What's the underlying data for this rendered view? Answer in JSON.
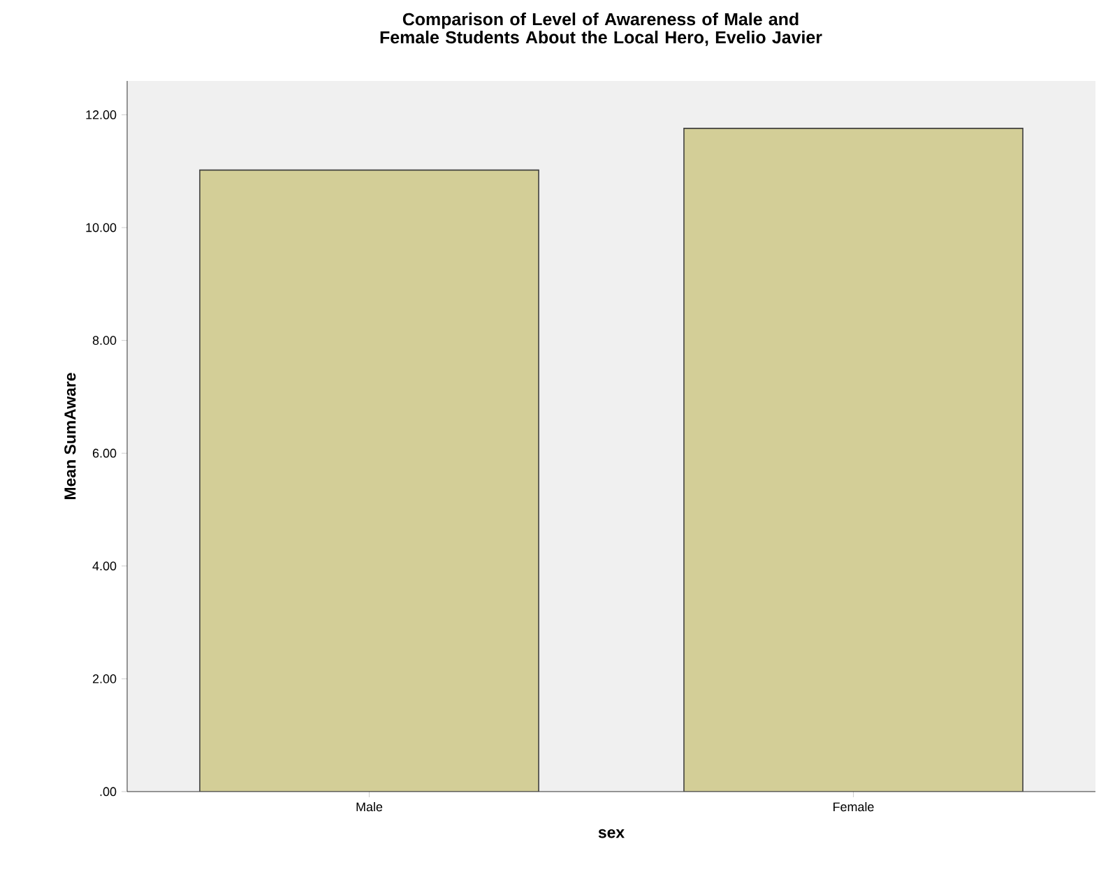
{
  "chart_data": {
    "type": "bar",
    "title": "Comparison of Level of Awareness of Male and Female Students About the Local Hero, Evelio Javier",
    "xlabel": "sex",
    "ylabel": "Mean SumAware",
    "categories": [
      "Male",
      "Female"
    ],
    "values": [
      11.02,
      11.76
    ],
    "color": "#d3ce97",
    "ylim": [
      0,
      12.6
    ],
    "yticks": [
      {
        "value": 0,
        "label": ".00"
      },
      {
        "value": 2,
        "label": "2.00"
      },
      {
        "value": 4,
        "label": "4.00"
      },
      {
        "value": 6,
        "label": "6.00"
      },
      {
        "value": 8,
        "label": "8.00"
      },
      {
        "value": 10,
        "label": "10.00"
      },
      {
        "value": 12,
        "label": "12.00"
      }
    ],
    "grid": false
  }
}
